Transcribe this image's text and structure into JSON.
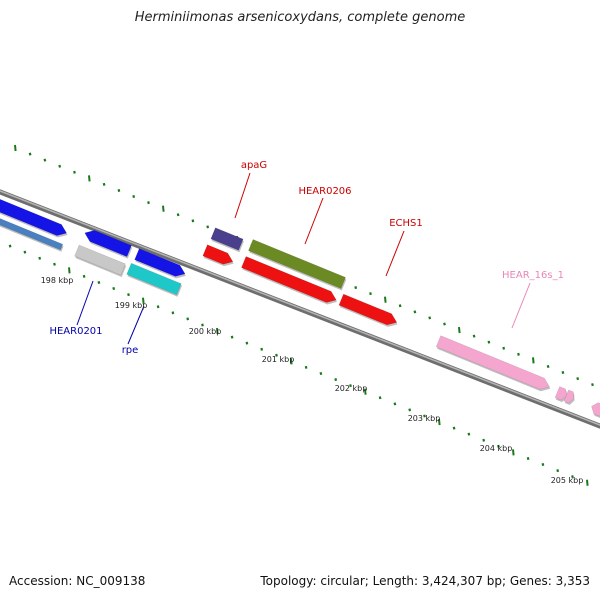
{
  "title": "Herminiimonas arsenicoxydans, complete genome",
  "footer": {
    "accession": "Accession: NC_009138",
    "summary": "Topology: circular; Length: 3,424,307 bp; Genes: 3,353"
  },
  "colors": {
    "backbone": "#8a8a8a",
    "tick": "#1a7a1a",
    "blue": "#1414e6",
    "steelblue": "#4a7fc0",
    "gray": "#c8c8c8",
    "cyan": "#1ec8c8",
    "navy": "#4a3f8c",
    "red": "#ee1111",
    "olive": "#6b8a23",
    "pink": "#f4a6cf",
    "label_red": "#cc0000",
    "label_blue": "#0000aa",
    "label_pink": "#e986b8"
  },
  "kbp_labels": [
    "198 kbp",
    "199 kbp",
    "200 kbp",
    "201 kbp",
    "202 kbp",
    "203 kbp",
    "204 kbp",
    "205 kbp"
  ],
  "gene_labels": [
    {
      "name": "apaG",
      "color": "label_red"
    },
    {
      "name": "HEAR0206",
      "color": "label_red"
    },
    {
      "name": "ECHS1",
      "color": "label_red"
    },
    {
      "name": "HEAR_16s_1",
      "color": "label_pink"
    },
    {
      "name": "HEAR0201",
      "color": "label_blue"
    },
    {
      "name": "rpe",
      "color": "label_blue"
    }
  ]
}
